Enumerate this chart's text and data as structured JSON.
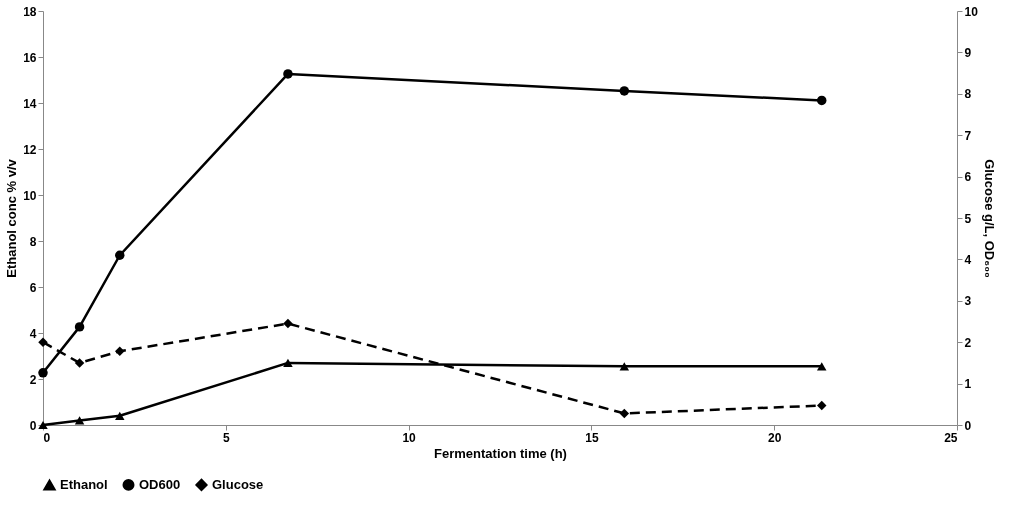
{
  "chart_data": {
    "type": "line",
    "xlabel": "Fermentation time (h)",
    "ylabel": "Ethanol conc %  v/v",
    "y2label": "Glucose g/L, OD₆₀₀",
    "xlim": [
      0,
      25
    ],
    "xticks": [
      0,
      5,
      10,
      15,
      20,
      25
    ],
    "ylim": [
      0,
      18
    ],
    "yticks": [
      0,
      2,
      4,
      6,
      8,
      10,
      12,
      14,
      16,
      18
    ],
    "y2lim": [
      0,
      10
    ],
    "y2ticks": [
      0,
      1,
      2,
      3,
      4,
      5,
      6,
      7,
      8,
      9,
      10
    ],
    "grid": false,
    "legend": "bottom",
    "series": [
      {
        "name": "Ethanol",
        "color": "#000000",
        "marker": "triangle",
        "line_style": "solid",
        "x": [
          0,
          1,
          2.1,
          6.7,
          15.9,
          21.3
        ],
        "values": [
          0,
          0.2,
          0.4,
          2.7,
          2.55,
          2.55
        ]
      },
      {
        "name": "OD600",
        "color": "#000000",
        "marker": "circle",
        "line_style": "solid",
        "axis": "y2",
        "x": [
          0,
          1,
          2.1,
          6.7,
          15.9,
          21.3
        ],
        "values": [
          1.26,
          2.37,
          4.1,
          8.48,
          8.07,
          7.84
        ]
      },
      {
        "name": "Glucose",
        "color": "#000000",
        "marker": "diamond",
        "line_style": "dashed",
        "axis": "y2",
        "x": [
          0,
          1,
          2.1,
          6.7,
          15.9,
          21.3
        ],
        "values": [
          2.0,
          1.5,
          1.78,
          2.45,
          0.28,
          0.47
        ]
      }
    ]
  }
}
